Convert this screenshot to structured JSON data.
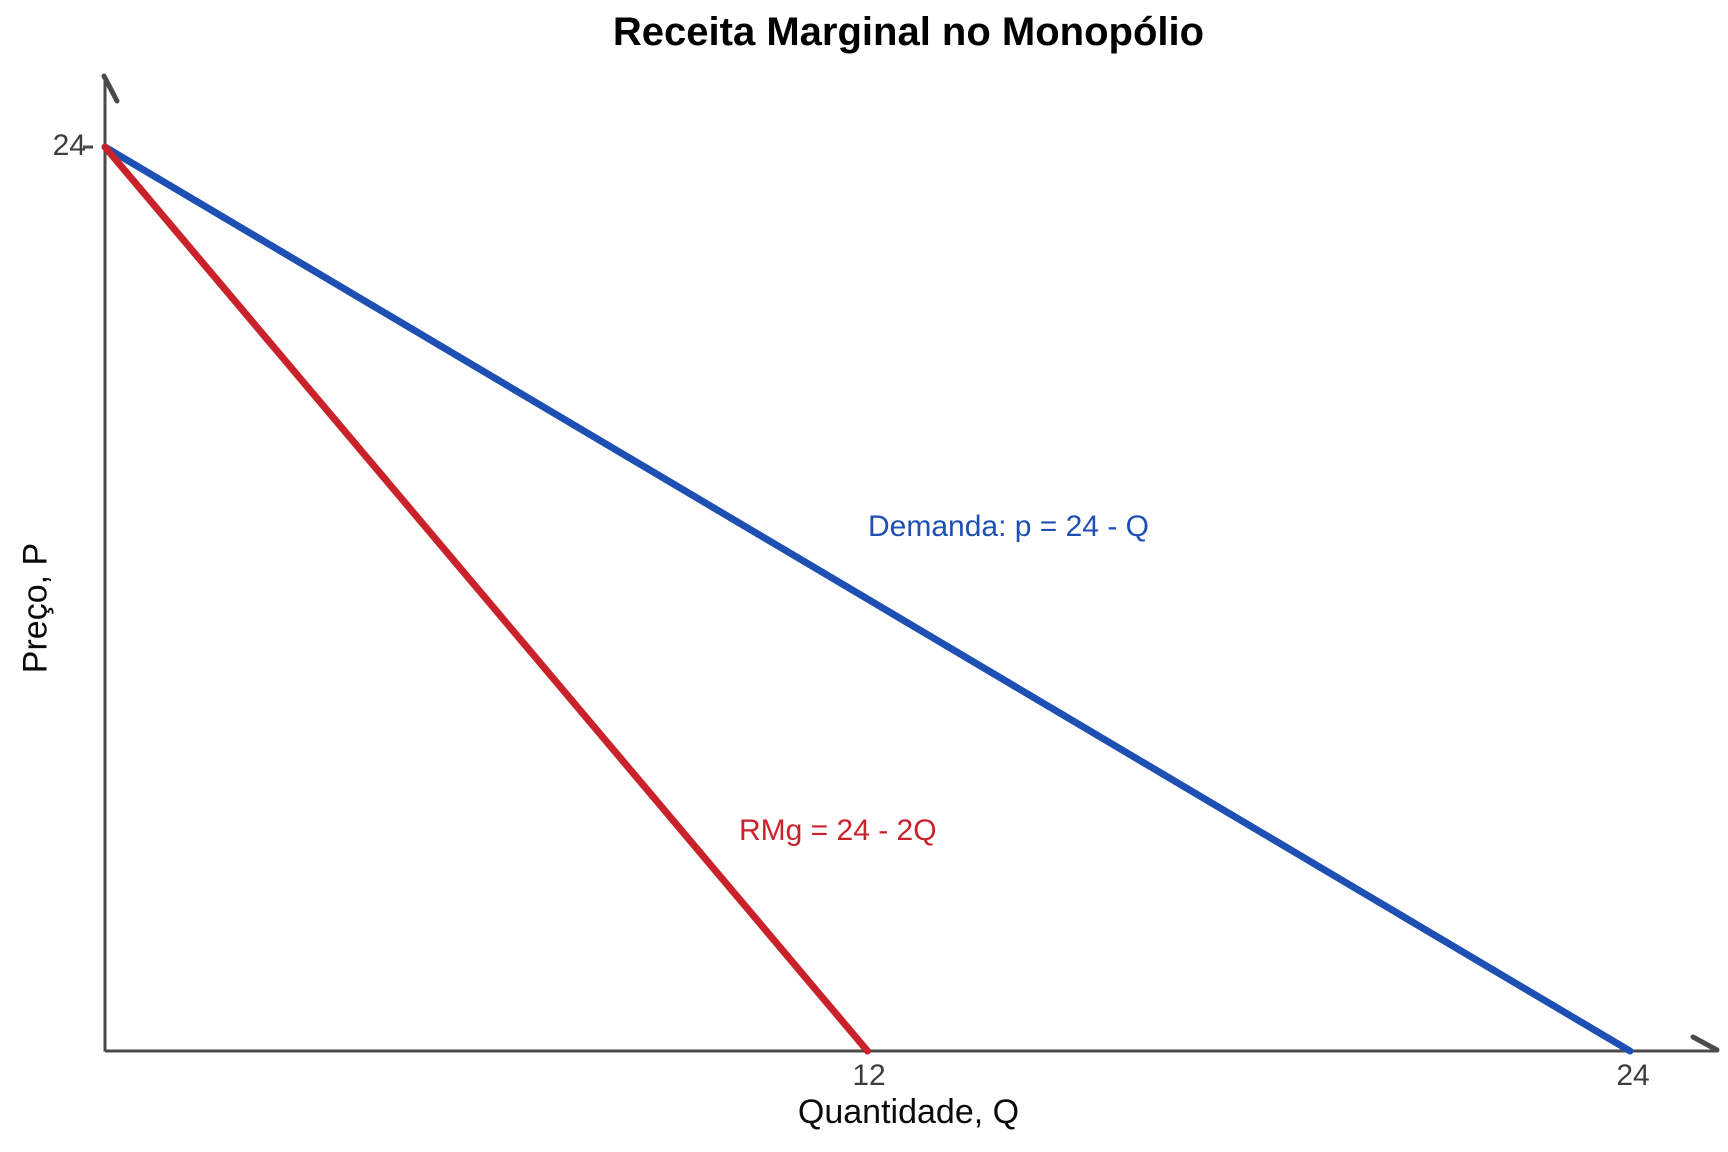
{
  "title": "Receita Marginal no Monopólio",
  "axes": {
    "x": {
      "label": "Quantidade, Q",
      "ticks": [
        "12",
        "24"
      ]
    },
    "y": {
      "label": "Preço, P",
      "ticks": [
        "24"
      ]
    }
  },
  "chart_data": {
    "type": "line",
    "title": "Receita Marginal no Monopólio",
    "xlabel": "Quantidade, Q",
    "ylabel": "Preço, P",
    "xlim": [
      0,
      25.3
    ],
    "ylim": [
      0,
      25.9
    ],
    "x_ticks": [
      12,
      24
    ],
    "y_ticks": [
      24
    ],
    "grid": false,
    "legend_position": "none (inline line annotations)",
    "series": [
      {
        "name": "demanda",
        "label": "Demanda: p = 24 - Q",
        "equation": "p = 24 - Q",
        "color": "#1e50b4",
        "points": [
          [
            0,
            24
          ],
          [
            24,
            0
          ]
        ],
        "x_intercept": 24,
        "y_intercept": 24
      },
      {
        "name": "rmg",
        "label": "RMg = 24 - 2Q",
        "equation": "RMg = 24 - 2Q",
        "color": "#c9222a",
        "points": [
          [
            0,
            24
          ],
          [
            12,
            0
          ]
        ],
        "x_intercept": 12,
        "y_intercept": 24
      }
    ]
  },
  "style": {
    "background": "#ffffff",
    "axis_color": "#4a4a4a",
    "tick_label_color": "#3d3d3d",
    "title_color": "#000000"
  }
}
